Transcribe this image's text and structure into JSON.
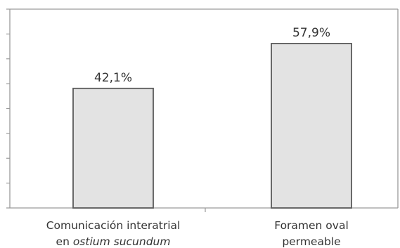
{
  "chart_data": {
    "type": "bar",
    "categories": [
      {
        "lines": [
          [
            {
              "text": "Comunicación interatrial",
              "italic": false
            }
          ],
          [
            {
              "text": "en ",
              "italic": false
            },
            {
              "text": "ostium sucundum",
              "italic": true
            }
          ]
        ]
      },
      {
        "lines": [
          [
            {
              "text": "Foramen oval",
              "italic": false
            }
          ],
          [
            {
              "text": "permeable",
              "italic": false
            }
          ]
        ]
      }
    ],
    "values": [
      42.1,
      57.9
    ],
    "value_labels": [
      "42,1%",
      "57,9%"
    ],
    "ylim": [
      0,
      70
    ],
    "ytick_count": 8,
    "grid": false,
    "legend": "none",
    "colors": {
      "bar_fill": "#e3e3e3",
      "bar_stroke": "#5b5b5b",
      "axis": "#9a9a9a",
      "text": "#333333"
    }
  }
}
